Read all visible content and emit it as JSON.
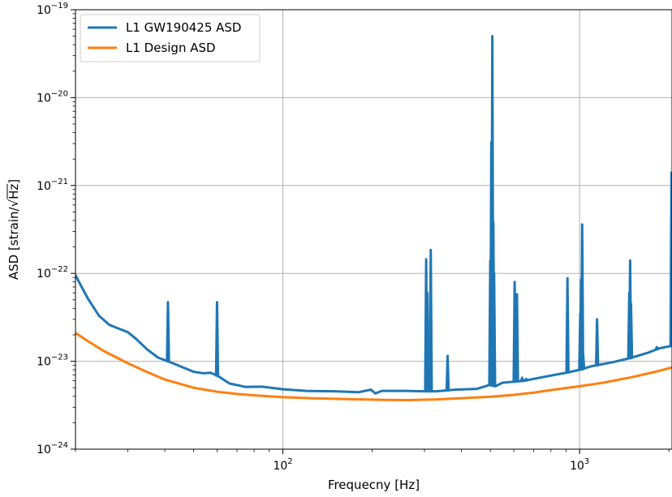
{
  "chart_data": {
    "type": "line",
    "xscale": "log",
    "yscale": "log",
    "xlabel": "Frequecny [Hz]",
    "ylabel_prefix": "ASD [strain/",
    "ylabel_radicand": "Hz",
    "ylabel_suffix": "]",
    "xlim": [
      20,
      2048
    ],
    "ylim": [
      1e-24,
      1e-19
    ],
    "grid": true,
    "legend_position": "upper-left",
    "x_ticks": [
      {
        "value": 100,
        "base": "10",
        "exp": "2"
      },
      {
        "value": 1000,
        "base": "10",
        "exp": "3"
      }
    ],
    "y_ticks": [
      {
        "value": 1e-24,
        "base": "10",
        "exp": "−24"
      },
      {
        "value": 1e-23,
        "base": "10",
        "exp": "−23"
      },
      {
        "value": 1e-22,
        "base": "10",
        "exp": "−22"
      },
      {
        "value": 1e-21,
        "base": "10",
        "exp": "−21"
      },
      {
        "value": 1e-20,
        "base": "10",
        "exp": "−20"
      },
      {
        "value": 1e-19,
        "base": "10",
        "exp": "−19"
      }
    ],
    "series": [
      {
        "name": "L1 GW190425 ASD",
        "color": "#1f77b4",
        "points": [
          [
            20,
            9.5e-23
          ],
          [
            22,
            5.2e-23
          ],
          [
            24,
            3.3e-23
          ],
          [
            26,
            2.6e-23
          ],
          [
            28,
            2.35e-23
          ],
          [
            30,
            2.15e-23
          ],
          [
            32,
            1.8e-23
          ],
          [
            35,
            1.35e-23
          ],
          [
            38,
            1.1e-23
          ],
          [
            41,
            1e-23
          ],
          [
            45,
            8.8e-24
          ],
          [
            50,
            7.6e-24
          ],
          [
            54,
            7.3e-24
          ],
          [
            57,
            7.4e-24
          ],
          [
            60,
            6.9e-24
          ],
          [
            66,
            5.6e-24
          ],
          [
            75,
            5.1e-24
          ],
          [
            85,
            5.15e-24
          ],
          [
            100,
            4.8e-24
          ],
          [
            120,
            4.6e-24
          ],
          [
            150,
            4.55e-24
          ],
          [
            180,
            4.45e-24
          ],
          [
            198,
            4.75e-24
          ],
          [
            205,
            4.3e-24
          ],
          [
            215,
            4.6e-24
          ],
          [
            260,
            4.6e-24
          ],
          [
            300,
            4.55e-24
          ],
          [
            330,
            4.55e-24
          ],
          [
            380,
            4.75e-24
          ],
          [
            450,
            4.85e-24
          ],
          [
            500,
            5.4e-24
          ],
          [
            520,
            5.2e-24
          ],
          [
            550,
            5.7e-24
          ],
          [
            650,
            6e-24
          ],
          [
            750,
            6.6e-24
          ],
          [
            900,
            7.4e-24
          ],
          [
            1000,
            8e-24
          ],
          [
            1100,
            8.8e-24
          ],
          [
            1300,
            9.8e-24
          ],
          [
            1500,
            1.1e-23
          ],
          [
            1700,
            1.25e-23
          ],
          [
            1850,
            1.4e-23
          ],
          [
            2048,
            1.5e-23
          ]
        ],
        "lines": [
          {
            "f": 41,
            "peak": 4.7e-23
          },
          {
            "f": 60,
            "peak": 4.7e-23
          },
          {
            "f": 304,
            "peak": 1.45e-22
          },
          {
            "f": 307,
            "peak": 6e-23
          },
          {
            "f": 315,
            "peak": 1.85e-22
          },
          {
            "f": 359,
            "peak": 1.15e-23
          },
          {
            "f": 500,
            "peak": 1.4e-22
          },
          {
            "f": 504,
            "peak": 3.1e-21
          },
          {
            "f": 508,
            "peak": 5e-20
          },
          {
            "f": 512,
            "peak": 3.8e-22
          },
          {
            "f": 515,
            "peak": 1e-22
          },
          {
            "f": 604,
            "peak": 8e-23
          },
          {
            "f": 608,
            "peak": 4e-23
          },
          {
            "f": 615,
            "peak": 5.8e-23
          },
          {
            "f": 640,
            "peak": 6.5e-24
          },
          {
            "f": 660,
            "peak": 6.3e-24
          },
          {
            "f": 910,
            "peak": 8.8e-23
          },
          {
            "f": 1005,
            "peak": 3.5e-23
          },
          {
            "f": 1012,
            "peak": 8.5e-23
          },
          {
            "f": 1020,
            "peak": 3.6e-22
          },
          {
            "f": 1028,
            "peak": 1.2e-23
          },
          {
            "f": 1145,
            "peak": 3e-23
          },
          {
            "f": 1470,
            "peak": 6e-23
          },
          {
            "f": 1480,
            "peak": 1.4e-22
          },
          {
            "f": 1490,
            "peak": 4.5e-23
          },
          {
            "f": 1820,
            "peak": 1.45e-23
          },
          {
            "f": 2040,
            "peak": 1.4e-21
          }
        ]
      },
      {
        "name": "L1 Design ASD",
        "color": "#ff7f0e",
        "points": [
          [
            20,
            2.1e-23
          ],
          [
            22,
            1.7e-23
          ],
          [
            25,
            1.3e-23
          ],
          [
            30,
            9.5e-24
          ],
          [
            35,
            7.5e-24
          ],
          [
            40,
            6.2e-24
          ],
          [
            50,
            5e-24
          ],
          [
            60,
            4.5e-24
          ],
          [
            70,
            4.25e-24
          ],
          [
            80,
            4.1e-24
          ],
          [
            100,
            3.9e-24
          ],
          [
            130,
            3.78e-24
          ],
          [
            170,
            3.7e-24
          ],
          [
            220,
            3.63e-24
          ],
          [
            270,
            3.62e-24
          ],
          [
            330,
            3.68e-24
          ],
          [
            400,
            3.8e-24
          ],
          [
            500,
            3.95e-24
          ],
          [
            600,
            4.15e-24
          ],
          [
            700,
            4.4e-24
          ],
          [
            800,
            4.7e-24
          ],
          [
            1000,
            5.2e-24
          ],
          [
            1200,
            5.7e-24
          ],
          [
            1500,
            6.6e-24
          ],
          [
            1800,
            7.6e-24
          ],
          [
            2048,
            8.5e-24
          ]
        ]
      }
    ]
  }
}
